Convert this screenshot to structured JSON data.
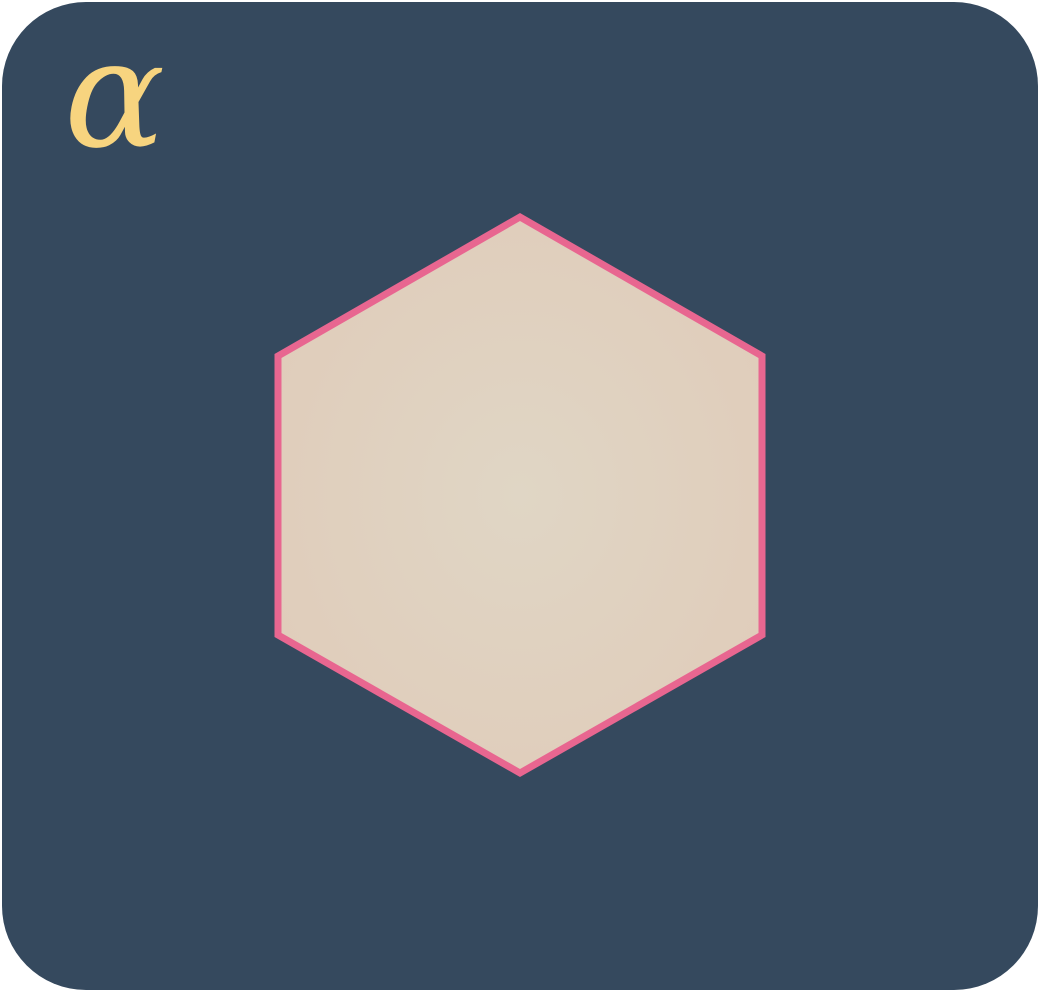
{
  "symbol": {
    "text": "α",
    "color": "#f7d47f"
  },
  "card": {
    "background": "#35495e"
  },
  "shape": {
    "kind": "hexagon",
    "fill_center": "#e0d6c5",
    "fill_edge": "#e0cdbb",
    "stroke": "#e86690"
  }
}
